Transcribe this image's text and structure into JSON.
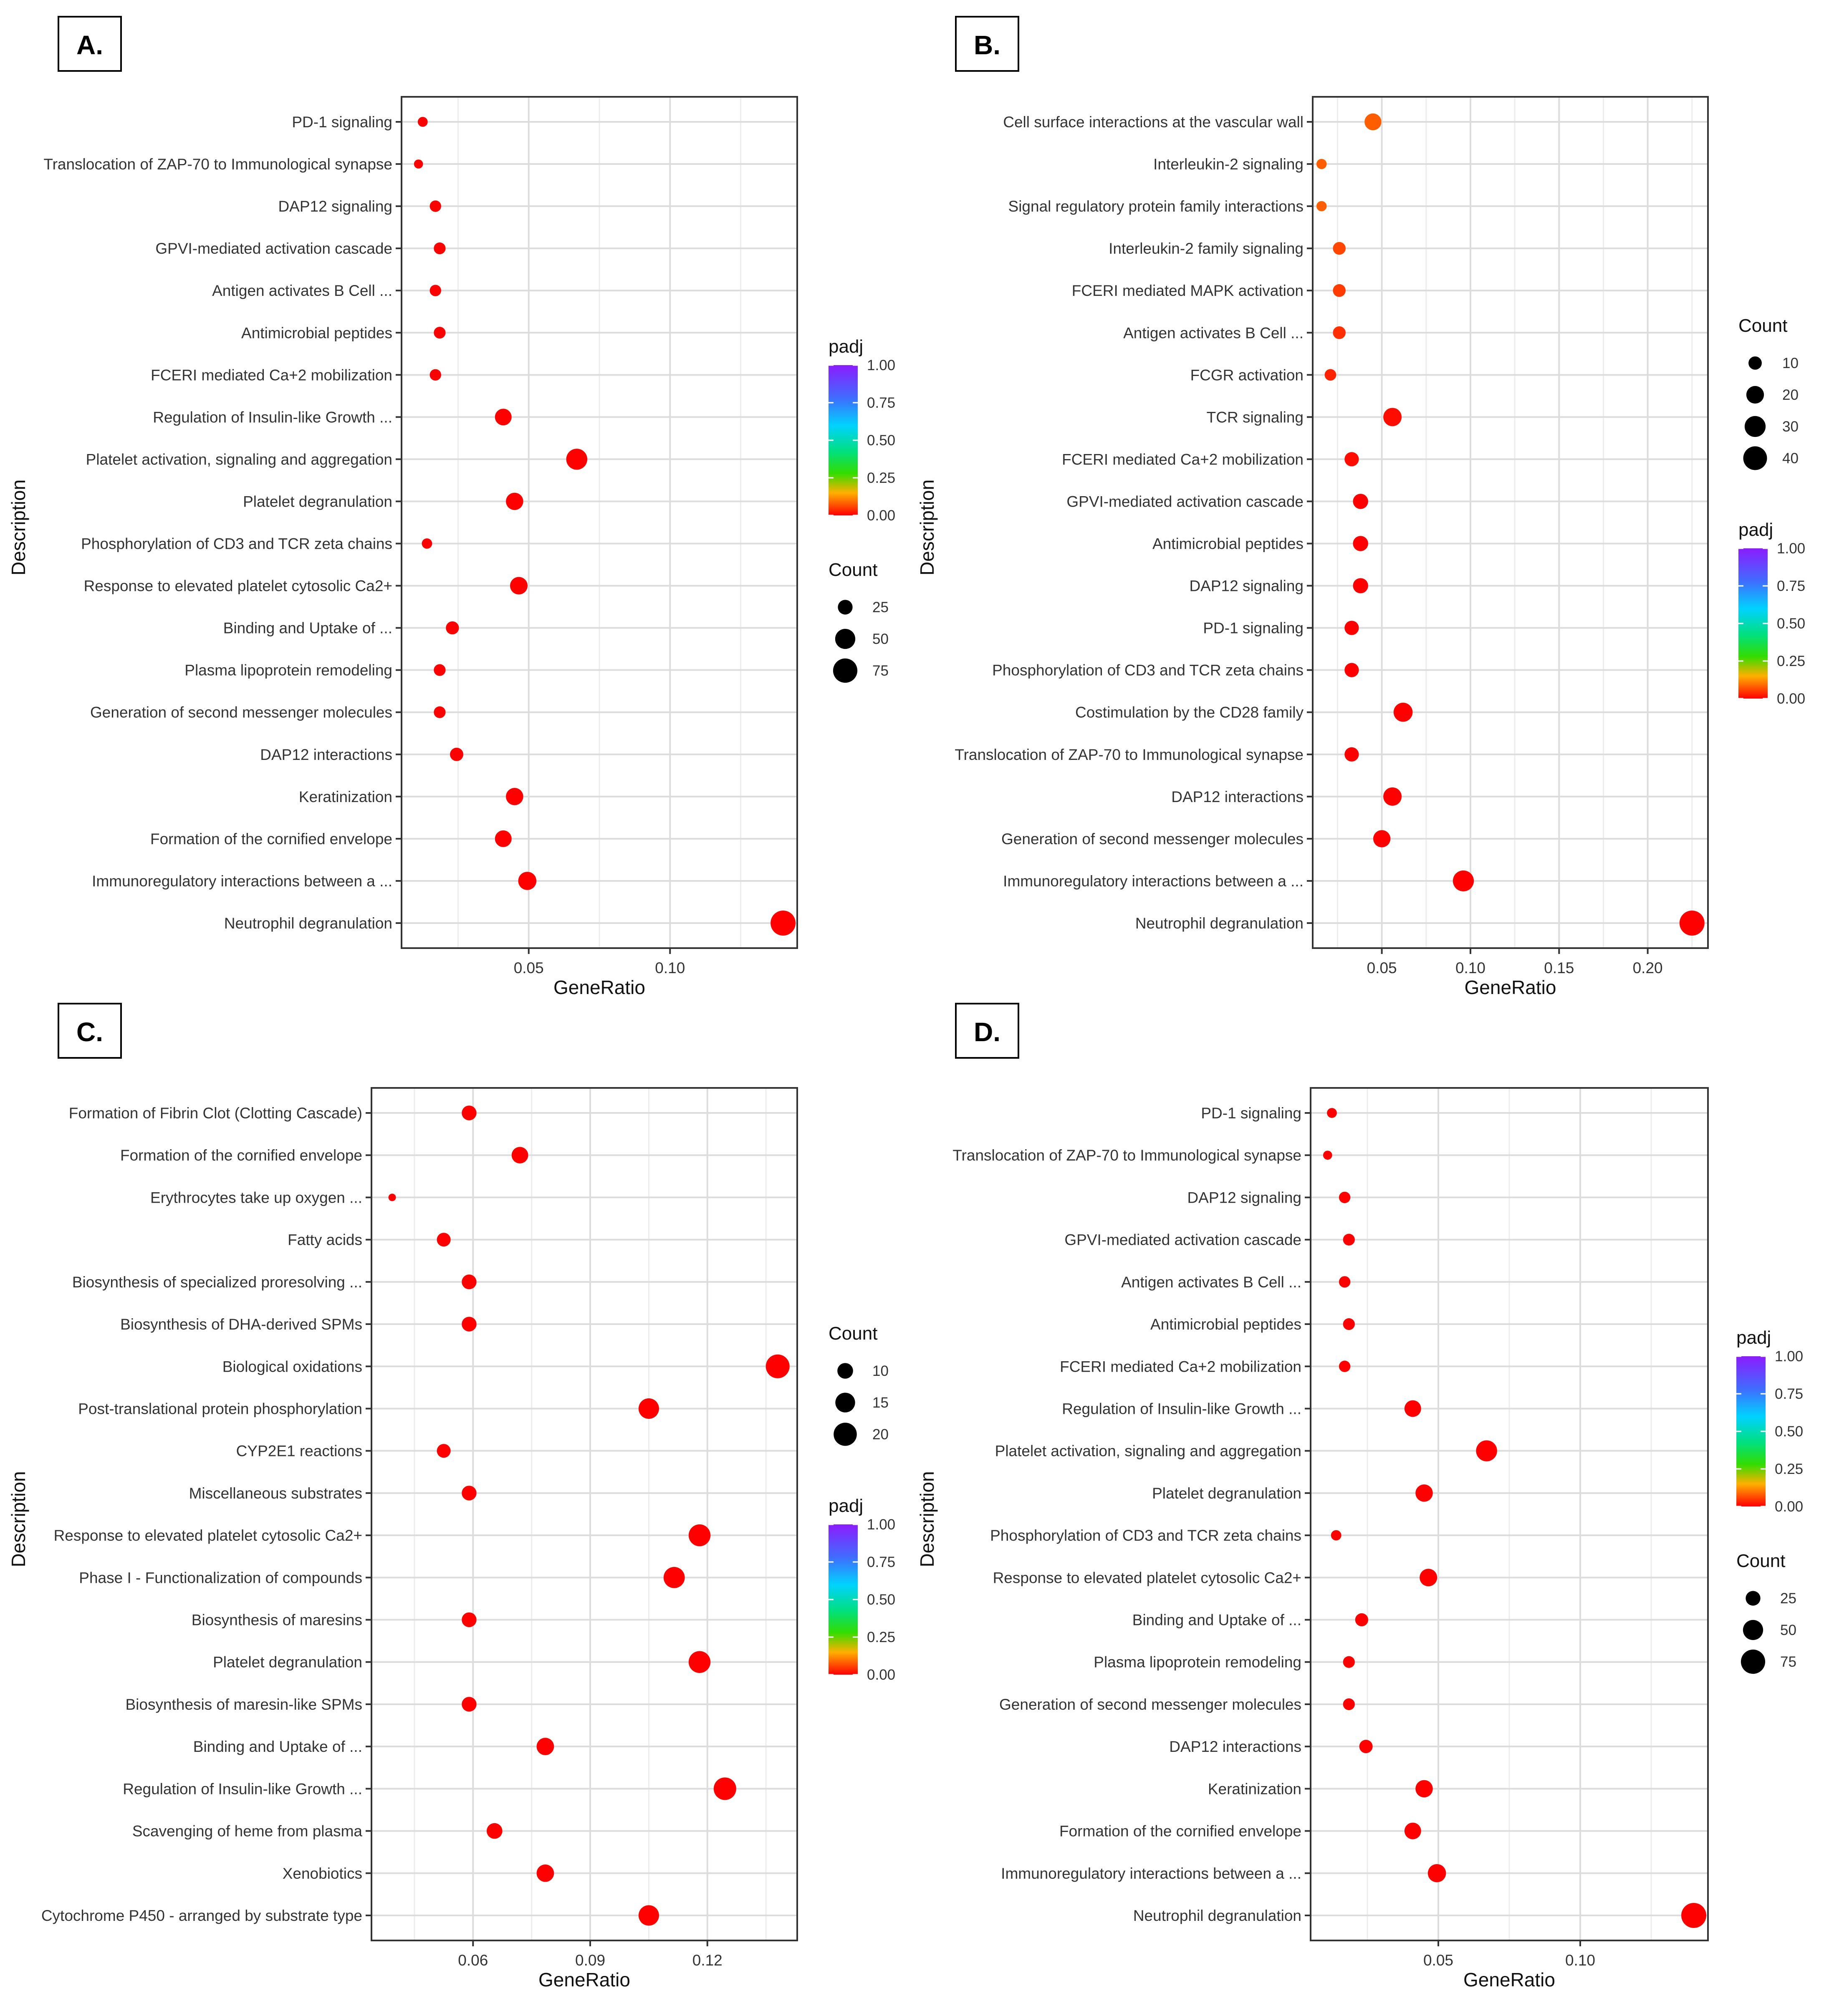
{
  "chart_data": [
    {
      "panel_label": "A.",
      "type": "scatter",
      "xlabel": "GeneRatio",
      "ylabel": "Description",
      "xlim": [
        0.005,
        0.145
      ],
      "xticks": [
        0.05,
        0.1
      ],
      "xtick_labels": [
        "0.05",
        "0.10"
      ],
      "grid": true,
      "legend_order": [
        "padj",
        "Count"
      ],
      "padj_legend": {
        "title": "padj",
        "labels": [
          "1.00",
          "0.75",
          "0.50",
          "0.25",
          "0.00"
        ]
      },
      "count_legend": {
        "title": "Count",
        "values": [
          25,
          50,
          75
        ],
        "labels": [
          "25",
          "50",
          "75"
        ]
      },
      "count_range": [
        5,
        80
      ],
      "points": [
        {
          "label": "PD-1 signaling",
          "x": 0.0125,
          "count": 10,
          "padj": 0.0
        },
        {
          "label": "Translocation of ZAP-70 to Immunological synapse",
          "x": 0.011,
          "count": 8,
          "padj": 0.0
        },
        {
          "label": "DAP12 signaling",
          "x": 0.017,
          "count": 14,
          "padj": 0.0
        },
        {
          "label": "GPVI-mediated activation cascade",
          "x": 0.0185,
          "count": 15,
          "padj": 0.0
        },
        {
          "label": "Antigen activates B Cell ...",
          "x": 0.017,
          "count": 14,
          "padj": 0.0
        },
        {
          "label": "Antimicrobial peptides",
          "x": 0.0185,
          "count": 15,
          "padj": 0.0
        },
        {
          "label": "FCERI mediated Ca+2 mobilization",
          "x": 0.017,
          "count": 14,
          "padj": 0.0
        },
        {
          "label": "Regulation of Insulin-like Growth ...",
          "x": 0.041,
          "count": 33,
          "padj": 0.0
        },
        {
          "label": "Platelet activation, signaling and aggregation",
          "x": 0.067,
          "count": 55,
          "padj": 0.0
        },
        {
          "label": "Platelet degranulation",
          "x": 0.045,
          "count": 36,
          "padj": 0.0
        },
        {
          "label": "Phosphorylation of CD3 and TCR zeta chains",
          "x": 0.014,
          "count": 11,
          "padj": 0.0
        },
        {
          "label": "Response to elevated platelet cytosolic Ca2+",
          "x": 0.0465,
          "count": 37,
          "padj": 0.0
        },
        {
          "label": "Binding and Uptake of ...",
          "x": 0.023,
          "count": 19,
          "padj": 0.0
        },
        {
          "label": "Plasma lipoprotein remodeling",
          "x": 0.0185,
          "count": 15,
          "padj": 0.0
        },
        {
          "label": "Generation of second messenger molecules",
          "x": 0.0185,
          "count": 15,
          "padj": 0.0
        },
        {
          "label": "DAP12 interactions",
          "x": 0.0245,
          "count": 20,
          "padj": 0.0
        },
        {
          "label": "Keratinization",
          "x": 0.045,
          "count": 36,
          "padj": 0.0
        },
        {
          "label": "Formation of the cornified envelope",
          "x": 0.041,
          "count": 33,
          "padj": 0.0
        },
        {
          "label": "Immunoregulatory interactions between a ...",
          "x": 0.0495,
          "count": 40,
          "padj": 0.0
        },
        {
          "label": "Neutrophil degranulation",
          "x": 0.14,
          "count": 80,
          "padj": 0.0
        }
      ]
    },
    {
      "panel_label": "B.",
      "type": "scatter",
      "xlabel": "GeneRatio",
      "ylabel": "Description",
      "xlim": [
        0.011,
        0.234
      ],
      "xticks": [
        0.05,
        0.1,
        0.15,
        0.2
      ],
      "xtick_labels": [
        "0.05",
        "0.10",
        "0.15",
        "0.20"
      ],
      "grid": true,
      "legend_order": [
        "Count",
        "padj"
      ],
      "padj_legend": {
        "title": "padj",
        "labels": [
          "1.00",
          "0.75",
          "0.50",
          "0.25",
          "0.00"
        ]
      },
      "count_legend": {
        "title": "Count",
        "values": [
          10,
          20,
          30,
          40
        ],
        "labels": [
          "10",
          "20",
          "30",
          "40"
        ]
      },
      "count_range": [
        2,
        45
      ],
      "points": [
        {
          "label": "Cell surface interactions at the vascular wall",
          "x": 0.045,
          "count": 18,
          "padj": 0.08
        },
        {
          "label": "Interleukin-2 signaling",
          "x": 0.016,
          "count": 5,
          "padj": 0.08
        },
        {
          "label": "Signal regulatory protein family interactions",
          "x": 0.016,
          "count": 5,
          "padj": 0.08
        },
        {
          "label": "Interleukin-2 family signaling",
          "x": 0.026,
          "count": 9,
          "padj": 0.06
        },
        {
          "label": "FCERI mediated MAPK activation",
          "x": 0.026,
          "count": 9,
          "padj": 0.05
        },
        {
          "label": "Antigen activates B Cell ...",
          "x": 0.026,
          "count": 9,
          "padj": 0.04
        },
        {
          "label": "FCGR activation",
          "x": 0.021,
          "count": 7,
          "padj": 0.03
        },
        {
          "label": "TCR signaling",
          "x": 0.056,
          "count": 22,
          "padj": 0.01
        },
        {
          "label": "FCERI mediated Ca+2 mobilization",
          "x": 0.033,
          "count": 12,
          "padj": 0.01
        },
        {
          "label": "GPVI-mediated activation cascade",
          "x": 0.038,
          "count": 14,
          "padj": 0.0
        },
        {
          "label": "Antimicrobial peptides",
          "x": 0.038,
          "count": 14,
          "padj": 0.0
        },
        {
          "label": "DAP12 signaling",
          "x": 0.038,
          "count": 14,
          "padj": 0.0
        },
        {
          "label": "PD-1 signaling",
          "x": 0.033,
          "count": 12,
          "padj": 0.0
        },
        {
          "label": "Phosphorylation of CD3 and TCR zeta chains",
          "x": 0.033,
          "count": 12,
          "padj": 0.0
        },
        {
          "label": "Costimulation by the CD28 family",
          "x": 0.062,
          "count": 24,
          "padj": 0.0
        },
        {
          "label": "Translocation of ZAP-70 to Immunological synapse",
          "x": 0.033,
          "count": 12,
          "padj": 0.0
        },
        {
          "label": "DAP12 interactions",
          "x": 0.056,
          "count": 22,
          "padj": 0.0
        },
        {
          "label": "Generation of second messenger molecules",
          "x": 0.05,
          "count": 19,
          "padj": 0.0
        },
        {
          "label": "Immunoregulatory interactions between a ...",
          "x": 0.096,
          "count": 30,
          "padj": 0.0
        },
        {
          "label": "Neutrophil degranulation",
          "x": 0.225,
          "count": 45,
          "padj": 0.0
        }
      ]
    },
    {
      "panel_label": "C.",
      "type": "scatter",
      "xlabel": "GeneRatio",
      "ylabel": "Description",
      "xlim": [
        0.034,
        0.143
      ],
      "xticks": [
        0.06,
        0.09,
        0.12
      ],
      "xtick_labels": [
        "0.06",
        "0.09",
        "0.12"
      ],
      "grid": true,
      "legend_order": [
        "Count",
        "padj"
      ],
      "padj_legend": {
        "title": "padj",
        "labels": [
          "1.00",
          "0.75",
          "0.50",
          "0.25",
          "0.00"
        ]
      },
      "count_legend": {
        "title": "Count",
        "values": [
          10,
          15,
          20
        ],
        "labels": [
          "10",
          "15",
          "20"
        ]
      },
      "count_range": [
        3,
        23
      ],
      "points": [
        {
          "label": "Formation of Fibrin Clot (Clotting Cascade)",
          "x": 0.059,
          "count": 9,
          "padj": 0.0
        },
        {
          "label": "Formation of the cornified envelope",
          "x": 0.072,
          "count": 11,
          "padj": 0.0
        },
        {
          "label": "Erythrocytes take up oxygen ...",
          "x": 0.0393,
          "count": 3,
          "padj": 0.0
        },
        {
          "label": "Fatty acids",
          "x": 0.0525,
          "count": 8,
          "padj": 0.0
        },
        {
          "label": "Biosynthesis of specialized proresolving ...",
          "x": 0.059,
          "count": 9,
          "padj": 0.0
        },
        {
          "label": "Biosynthesis of DHA-derived SPMs",
          "x": 0.059,
          "count": 9,
          "padj": 0.0
        },
        {
          "label": "Biological oxidations",
          "x": 0.138,
          "count": 21,
          "padj": 0.0
        },
        {
          "label": "Post-translational protein phosphorylation",
          "x": 0.105,
          "count": 16,
          "padj": 0.0
        },
        {
          "label": "CYP2E1 reactions",
          "x": 0.0525,
          "count": 8,
          "padj": 0.0
        },
        {
          "label": "Miscellaneous substrates",
          "x": 0.059,
          "count": 9,
          "padj": 0.0
        },
        {
          "label": "Response to elevated platelet cytosolic Ca2+",
          "x": 0.118,
          "count": 18,
          "padj": 0.0
        },
        {
          "label": "Phase I - Functionalization of compounds",
          "x": 0.1115,
          "count": 17,
          "padj": 0.0
        },
        {
          "label": "Biosynthesis of maresins",
          "x": 0.059,
          "count": 9,
          "padj": 0.0
        },
        {
          "label": "Platelet degranulation",
          "x": 0.118,
          "count": 18,
          "padj": 0.0
        },
        {
          "label": "Biosynthesis of maresin-like SPMs",
          "x": 0.059,
          "count": 9,
          "padj": 0.0
        },
        {
          "label": "Binding and Uptake of ...",
          "x": 0.0785,
          "count": 12,
          "padj": 0.0
        },
        {
          "label": "Regulation of Insulin-like Growth ...",
          "x": 0.1245,
          "count": 19,
          "padj": 0.0
        },
        {
          "label": "Scavenging of heme from plasma",
          "x": 0.0655,
          "count": 10,
          "padj": 0.0
        },
        {
          "label": "Xenobiotics",
          "x": 0.0785,
          "count": 12,
          "padj": 0.0
        },
        {
          "label": "Cytochrome P450 - arranged by substrate type",
          "x": 0.105,
          "count": 16,
          "padj": 0.0
        }
      ]
    },
    {
      "panel_label": "D.",
      "type": "scatter",
      "xlabel": "GeneRatio",
      "ylabel": "Description",
      "xlim": [
        0.005,
        0.145
      ],
      "xticks": [
        0.05,
        0.1
      ],
      "xtick_labels": [
        "0.05",
        "0.10"
      ],
      "grid": true,
      "legend_order": [
        "padj",
        "Count"
      ],
      "padj_legend": {
        "title": "padj",
        "labels": [
          "1.00",
          "0.75",
          "0.50",
          "0.25",
          "0.00"
        ]
      },
      "count_legend": {
        "title": "Count",
        "values": [
          25,
          50,
          75
        ],
        "labels": [
          "25",
          "50",
          "75"
        ]
      },
      "count_range": [
        5,
        80
      ],
      "points": [
        {
          "label": "PD-1 signaling",
          "x": 0.0125,
          "count": 10,
          "padj": 0.0
        },
        {
          "label": "Translocation of ZAP-70 to Immunological synapse",
          "x": 0.011,
          "count": 8,
          "padj": 0.0
        },
        {
          "label": "DAP12 signaling",
          "x": 0.017,
          "count": 14,
          "padj": 0.0
        },
        {
          "label": "GPVI-mediated activation cascade",
          "x": 0.0185,
          "count": 15,
          "padj": 0.0
        },
        {
          "label": "Antigen activates B Cell ...",
          "x": 0.017,
          "count": 14,
          "padj": 0.0
        },
        {
          "label": "Antimicrobial peptides",
          "x": 0.0185,
          "count": 15,
          "padj": 0.0
        },
        {
          "label": "FCERI mediated Ca+2 mobilization",
          "x": 0.017,
          "count": 14,
          "padj": 0.0
        },
        {
          "label": "Regulation of Insulin-like Growth ...",
          "x": 0.041,
          "count": 33,
          "padj": 0.0
        },
        {
          "label": "Platelet activation, signaling and aggregation",
          "x": 0.067,
          "count": 55,
          "padj": 0.0
        },
        {
          "label": "Platelet degranulation",
          "x": 0.045,
          "count": 36,
          "padj": 0.0
        },
        {
          "label": "Phosphorylation of CD3 and TCR zeta chains",
          "x": 0.014,
          "count": 11,
          "padj": 0.0
        },
        {
          "label": "Response to elevated platelet cytosolic Ca2+",
          "x": 0.0465,
          "count": 37,
          "padj": 0.0
        },
        {
          "label": "Binding and Uptake of ...",
          "x": 0.023,
          "count": 19,
          "padj": 0.0
        },
        {
          "label": "Plasma lipoprotein remodeling",
          "x": 0.0185,
          "count": 15,
          "padj": 0.0
        },
        {
          "label": "Generation of second messenger molecules",
          "x": 0.0185,
          "count": 15,
          "padj": 0.0
        },
        {
          "label": "DAP12 interactions",
          "x": 0.0245,
          "count": 20,
          "padj": 0.0
        },
        {
          "label": "Keratinization",
          "x": 0.045,
          "count": 36,
          "padj": 0.0
        },
        {
          "label": "Formation of the cornified envelope",
          "x": 0.041,
          "count": 33,
          "padj": 0.0
        },
        {
          "label": "Immunoregulatory interactions between a ...",
          "x": 0.0495,
          "count": 40,
          "padj": 0.0
        },
        {
          "label": "Neutrophil degranulation",
          "x": 0.14,
          "count": 80,
          "padj": 0.0
        }
      ]
    }
  ]
}
